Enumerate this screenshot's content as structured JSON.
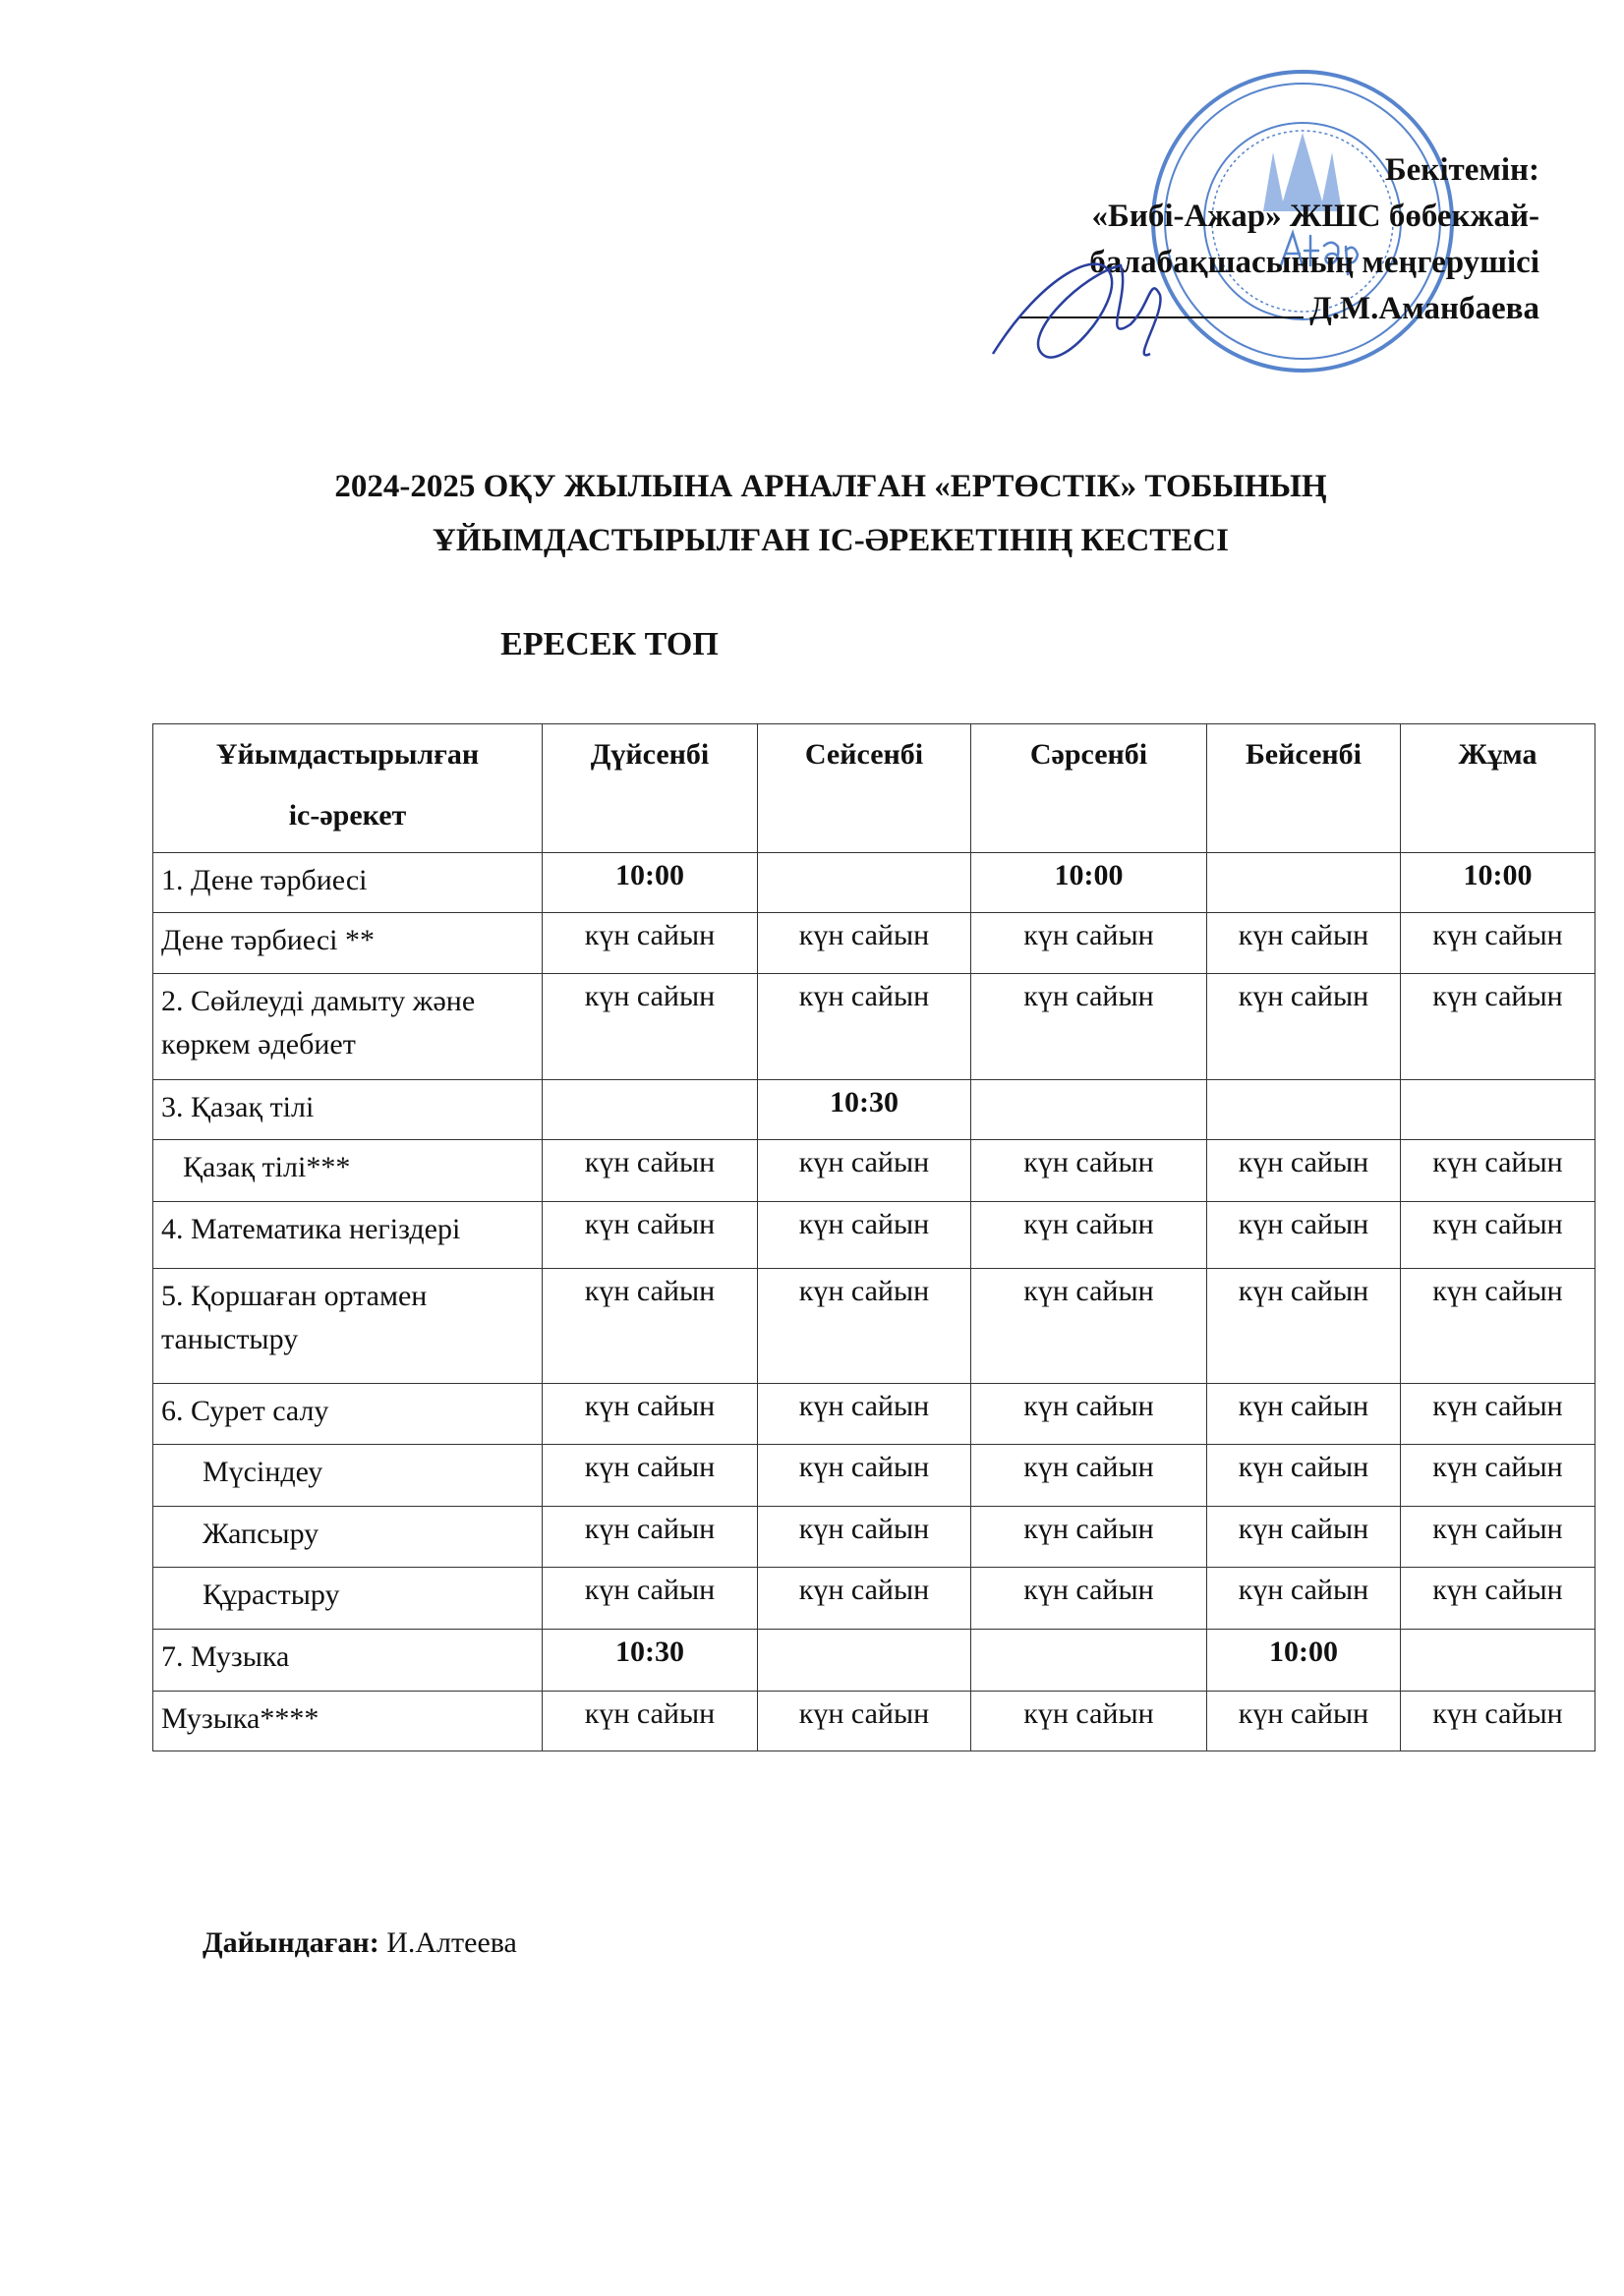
{
  "approval": {
    "line1": "Бекітемін:",
    "line2": "«Бибі-Ажар» ЖШС бөбекжай-",
    "line3": "балабақшасының меңгерушісі",
    "line4": "Д.М.Аманбаева"
  },
  "stamp": {
    "text": "«Бибі-Ажар» бөбекжай-балабақшасы ЖШС",
    "ink_color": "#3a6fc4"
  },
  "title": {
    "line1": "2024-2025 ОҚУ ЖЫЛЫНА АРНАЛҒАН «ЕРТӨСТІК» ТОБЫНЫҢ",
    "line2": "ҰЙЫМДАСТЫРЫЛҒАН ІС-ӘРЕКЕТІНІҢ КЕСТЕСІ",
    "group": "ЕРЕСЕК ТОП"
  },
  "table": {
    "header": {
      "activity_line1": "Ұйымдастырылған",
      "activity_line2": "іс-әрекет",
      "days": [
        "Дүйсенбі",
        "Сейсенбі",
        "Сәрсенбі",
        "Бейсенбі",
        "Жұма"
      ]
    },
    "rows": [
      {
        "activity": "1. Дене тәрбиесі",
        "cells": [
          "10:00",
          "",
          "10:00",
          "",
          "10:00"
        ],
        "bold": true
      },
      {
        "activity": "Дене тәрбиесі  **",
        "cells": [
          "күн сайын",
          "күн сайын",
          "күн сайын",
          "күн сайын",
          "күн сайын"
        ]
      },
      {
        "activity": "2. Сөйлеуді дамыту және көркем әдебиет",
        "cells": [
          "күн сайын",
          "күн сайын",
          "күн сайын",
          "күн сайын",
          "күн сайын"
        ]
      },
      {
        "activity": "3. Қазақ тілі",
        "cells": [
          "",
          "10:30",
          "",
          "",
          ""
        ],
        "bold": true
      },
      {
        "activity": "Қазақ тілі***",
        "cells": [
          "күн сайын",
          "күн сайын",
          "күн сайын",
          "күн сайын",
          "күн сайын"
        ],
        "indent": 1
      },
      {
        "activity": "4. Математика негіздері",
        "cells": [
          "күн сайын",
          "күн сайын",
          "күн сайын",
          "күн сайын",
          "күн сайын"
        ]
      },
      {
        "activity": "5. Қоршаған ортамен таныстыру",
        "cells": [
          "күн сайын",
          "күн сайын",
          "күн сайын",
          "күн сайын",
          "күн сайын"
        ]
      },
      {
        "activity": "6. Сурет салу",
        "cells": [
          "күн сайын",
          "күн сайын",
          "күн сайын",
          "күн сайын",
          "күн сайын"
        ]
      },
      {
        "activity": "Мүсіндеу",
        "cells": [
          "күн сайын",
          "күн сайын",
          "күн сайын",
          "күн сайын",
          "күн сайын"
        ],
        "indent": 2
      },
      {
        "activity": "Жапсыру",
        "cells": [
          "күн сайын",
          "күн сайын",
          "күн сайын",
          "күн сайын",
          "күн сайын"
        ],
        "indent": 2
      },
      {
        "activity": "Құрастыру",
        "cells": [
          "күн сайын",
          "күн сайын",
          "күн сайын",
          "күн сайын",
          "күн сайын"
        ],
        "indent": 2
      },
      {
        "activity": "7. Музыка",
        "cells": [
          "10:30",
          "",
          "",
          "10:00",
          ""
        ],
        "bold": true
      },
      {
        "activity": "Музыка****",
        "cells": [
          "күн сайын",
          "күн сайын",
          "күн сайын",
          "күн сайын",
          "күн сайын"
        ]
      }
    ]
  },
  "prepared": {
    "label": "Дайындаған:",
    "name": "И.Алтеева"
  }
}
